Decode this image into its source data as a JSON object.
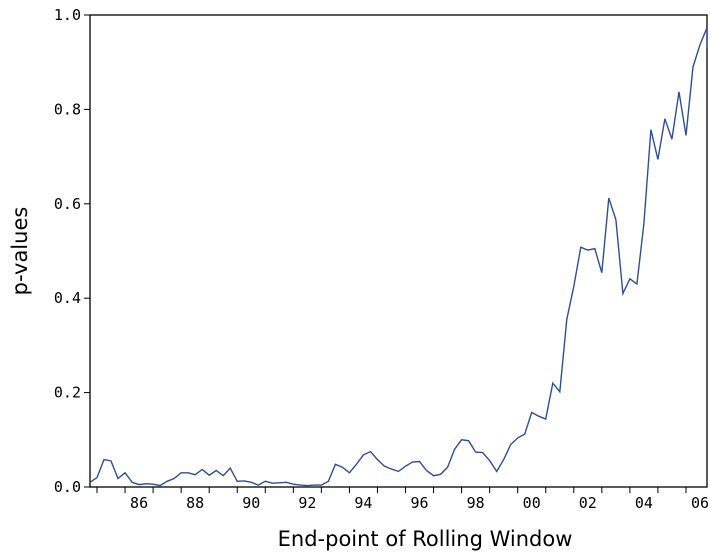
{
  "chart_data": {
    "type": "line",
    "title": "",
    "xlabel": "End-point of Rolling Window",
    "ylabel": "p-values",
    "xlim": [
      1984.75,
      2006.75
    ],
    "ylim": [
      0.0,
      1.0
    ],
    "y_ticks": [
      {
        "value": 0.0,
        "label": "0.0"
      },
      {
        "value": 0.2,
        "label": "0.2"
      },
      {
        "value": 0.4,
        "label": "0.4"
      },
      {
        "value": 0.6,
        "label": "0.6"
      },
      {
        "value": 0.8,
        "label": "0.8"
      },
      {
        "value": 1.0,
        "label": "1.0"
      }
    ],
    "x_tick_labels": [
      {
        "value": 1986,
        "label": "86"
      },
      {
        "value": 1988,
        "label": "88"
      },
      {
        "value": 1990,
        "label": "90"
      },
      {
        "value": 1992,
        "label": "92"
      },
      {
        "value": 1994,
        "label": "94"
      },
      {
        "value": 1996,
        "label": "96"
      },
      {
        "value": 1998,
        "label": "98"
      },
      {
        "value": 2000,
        "label": "00"
      },
      {
        "value": 2002,
        "label": "02"
      },
      {
        "value": 2004,
        "label": "04"
      },
      {
        "value": 2006,
        "label": "06"
      }
    ],
    "x_minor_ticks": [
      1985,
      1986,
      1987,
      1988,
      1989,
      1990,
      1991,
      1992,
      1993,
      1994,
      1995,
      1996,
      1997,
      1998,
      1999,
      2000,
      2001,
      2002,
      2003,
      2004,
      2005,
      2006
    ],
    "grid": false,
    "line_color": "#2e4d9a",
    "series": [
      {
        "values": [
          [
            1984.75,
            0.01
          ],
          [
            1985.0,
            0.02
          ],
          [
            1985.25,
            0.058
          ],
          [
            1985.5,
            0.055
          ],
          [
            1985.75,
            0.018
          ],
          [
            1986.0,
            0.03
          ],
          [
            1986.25,
            0.01
          ],
          [
            1986.5,
            0.005
          ],
          [
            1986.75,
            0.007
          ],
          [
            1987.0,
            0.006
          ],
          [
            1987.25,
            0.003
          ],
          [
            1987.5,
            0.012
          ],
          [
            1987.75,
            0.018
          ],
          [
            1988.0,
            0.03
          ],
          [
            1988.25,
            0.03
          ],
          [
            1988.5,
            0.026
          ],
          [
            1988.75,
            0.037
          ],
          [
            1989.0,
            0.025
          ],
          [
            1989.25,
            0.035
          ],
          [
            1989.5,
            0.024
          ],
          [
            1989.75,
            0.04
          ],
          [
            1990.0,
            0.012
          ],
          [
            1990.25,
            0.013
          ],
          [
            1990.5,
            0.01
          ],
          [
            1990.75,
            0.004
          ],
          [
            1991.0,
            0.012
          ],
          [
            1991.25,
            0.008
          ],
          [
            1991.5,
            0.009
          ],
          [
            1991.75,
            0.01
          ],
          [
            1992.0,
            0.006
          ],
          [
            1992.25,
            0.004
          ],
          [
            1992.5,
            0.003
          ],
          [
            1992.75,
            0.004
          ],
          [
            1993.0,
            0.004
          ],
          [
            1993.25,
            0.012
          ],
          [
            1993.5,
            0.048
          ],
          [
            1993.75,
            0.042
          ],
          [
            1994.0,
            0.03
          ],
          [
            1994.25,
            0.048
          ],
          [
            1994.5,
            0.068
          ],
          [
            1994.75,
            0.075
          ],
          [
            1995.0,
            0.058
          ],
          [
            1995.25,
            0.044
          ],
          [
            1995.5,
            0.038
          ],
          [
            1995.75,
            0.033
          ],
          [
            1996.0,
            0.044
          ],
          [
            1996.25,
            0.053
          ],
          [
            1996.5,
            0.054
          ],
          [
            1996.75,
            0.035
          ],
          [
            1997.0,
            0.024
          ],
          [
            1997.25,
            0.027
          ],
          [
            1997.5,
            0.042
          ],
          [
            1997.75,
            0.08
          ],
          [
            1998.0,
            0.1
          ],
          [
            1998.25,
            0.098
          ],
          [
            1998.5,
            0.074
          ],
          [
            1998.75,
            0.073
          ],
          [
            1999.0,
            0.056
          ],
          [
            1999.25,
            0.033
          ],
          [
            1999.5,
            0.058
          ],
          [
            1999.75,
            0.09
          ],
          [
            2000.0,
            0.104
          ],
          [
            2000.25,
            0.112
          ],
          [
            2000.5,
            0.158
          ],
          [
            2000.75,
            0.15
          ],
          [
            2001.0,
            0.144
          ],
          [
            2001.25,
            0.22
          ],
          [
            2001.5,
            0.202
          ],
          [
            2001.75,
            0.355
          ],
          [
            2002.0,
            0.425
          ],
          [
            2002.25,
            0.508
          ],
          [
            2002.5,
            0.502
          ],
          [
            2002.75,
            0.505
          ],
          [
            2003.0,
            0.454
          ],
          [
            2003.25,
            0.612
          ],
          [
            2003.5,
            0.566
          ],
          [
            2003.75,
            0.41
          ],
          [
            2004.0,
            0.441
          ],
          [
            2004.25,
            0.43
          ],
          [
            2004.5,
            0.558
          ],
          [
            2004.75,
            0.757
          ],
          [
            2005.0,
            0.694
          ],
          [
            2005.25,
            0.78
          ],
          [
            2005.5,
            0.737
          ],
          [
            2005.75,
            0.837
          ],
          [
            2006.0,
            0.745
          ],
          [
            2006.25,
            0.89
          ],
          [
            2006.5,
            0.937
          ],
          [
            2006.75,
            0.973
          ],
          [
            2006.8,
            0.93
          ]
        ]
      }
    ]
  }
}
